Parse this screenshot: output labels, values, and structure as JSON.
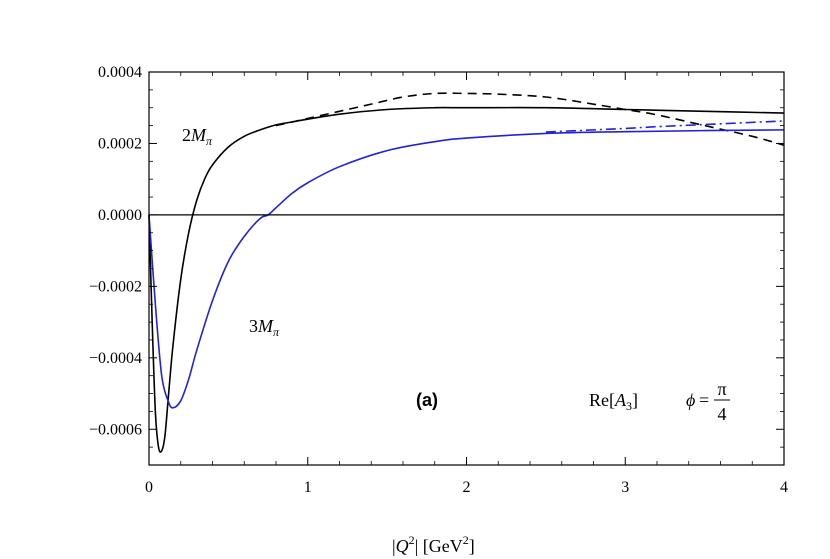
{
  "chart_data": {
    "type": "line",
    "xlim": [
      0,
      4
    ],
    "ylim": [
      -0.0007,
      0.0004
    ],
    "x_ticks": [
      0,
      1,
      2,
      3,
      4
    ],
    "x_tick_labels": [
      "0",
      "1",
      "2",
      "3",
      "4"
    ],
    "y_ticks": [
      0.0004,
      0.0002,
      0.0,
      -0.0002,
      -0.0004,
      -0.0006
    ],
    "y_tick_labels": [
      "0.0004",
      "0.0002",
      "0.0000",
      "−0.0002",
      "−0.0004",
      "−0.0006"
    ],
    "xlabel": "|Q²| [GeV²]",
    "xlabel_parts": {
      "pre": "|",
      "var": "Q",
      "sup": "2",
      "mid": "| [GeV",
      "unit_sup": "2",
      "post": "]"
    },
    "grid": false,
    "zero_line": true,
    "panel_label": "(a)",
    "quantity": {
      "re": "Re[",
      "var": "A",
      "sub": "3",
      "close": "]"
    },
    "phi": {
      "sym": "ϕ",
      "eq": "=",
      "num": "π",
      "den": "4"
    },
    "curve_labels": [
      {
        "coef": "2",
        "var": "M",
        "sub": "π",
        "at": [
          0.15,
          0.00022
        ]
      },
      {
        "coef": "3",
        "var": "M",
        "sub": "π",
        "at": [
          0.59,
          -0.00033
        ]
      }
    ],
    "colors": {
      "black": "#000000",
      "blue": "#2222dd"
    },
    "series": [
      {
        "color": "#000000",
        "style": "solid",
        "x": [
          0,
          0.02,
          0.04,
          0.06,
          0.08,
          0.1,
          0.12,
          0.15,
          0.2,
          0.25,
          0.3,
          0.35,
          0.4,
          0.5,
          0.6,
          0.7,
          0.8,
          0.9,
          1.0,
          1.2,
          1.5,
          1.8,
          2.0,
          2.5,
          3.0,
          3.5,
          4.0
        ],
        "y": [
          0,
          -0.0003,
          -0.00055,
          -0.00065,
          -0.00066,
          -0.00062,
          -0.00052,
          -0.00037,
          -0.00018,
          -5e-05,
          4e-05,
          0.0001,
          0.00014,
          0.00019,
          0.00022,
          0.000238,
          0.000252,
          0.00026,
          0.000268,
          0.000282,
          0.000295,
          0.0003,
          0.0003,
          0.0003,
          0.000295,
          0.00029,
          0.000285
        ]
      },
      {
        "color": "#000000",
        "style": "dashed",
        "x": [
          0.8,
          1.0,
          1.2,
          1.4,
          1.6,
          1.8,
          2.0,
          2.2,
          2.5,
          2.8,
          3.0,
          3.2,
          3.5,
          3.8,
          4.0
        ],
        "y": [
          0.00025,
          0.00027,
          0.00029,
          0.00031,
          0.00033,
          0.00034,
          0.00034,
          0.000338,
          0.00033,
          0.00031,
          0.000295,
          0.00028,
          0.00025,
          0.00022,
          0.000195
        ]
      },
      {
        "color": "#2222dd",
        "style": "solid",
        "x": [
          0,
          0.04,
          0.08,
          0.12,
          0.15,
          0.2,
          0.25,
          0.3,
          0.4,
          0.5,
          0.6,
          0.7,
          0.75,
          0.8,
          0.9,
          1.0,
          1.2,
          1.5,
          1.8,
          2.0,
          2.5,
          3.0,
          3.5,
          4.0
        ],
        "y": [
          0,
          -0.00025,
          -0.00045,
          -0.00052,
          -0.00054,
          -0.00052,
          -0.00046,
          -0.00038,
          -0.00024,
          -0.00013,
          -6e-05,
          -1e-05,
          0.0,
          2e-05,
          6e-05,
          9e-05,
          0.000135,
          0.00018,
          0.000205,
          0.000215,
          0.000228,
          0.000233,
          0.000236,
          0.000238
        ]
      },
      {
        "color": "#2222dd",
        "style": "dashdot",
        "x": [
          2.5,
          2.8,
          3.0,
          3.2,
          3.5,
          3.8,
          4.0
        ],
        "y": [
          0.000232,
          0.000238,
          0.000242,
          0.000247,
          0.000253,
          0.000259,
          0.000263
        ]
      }
    ]
  }
}
